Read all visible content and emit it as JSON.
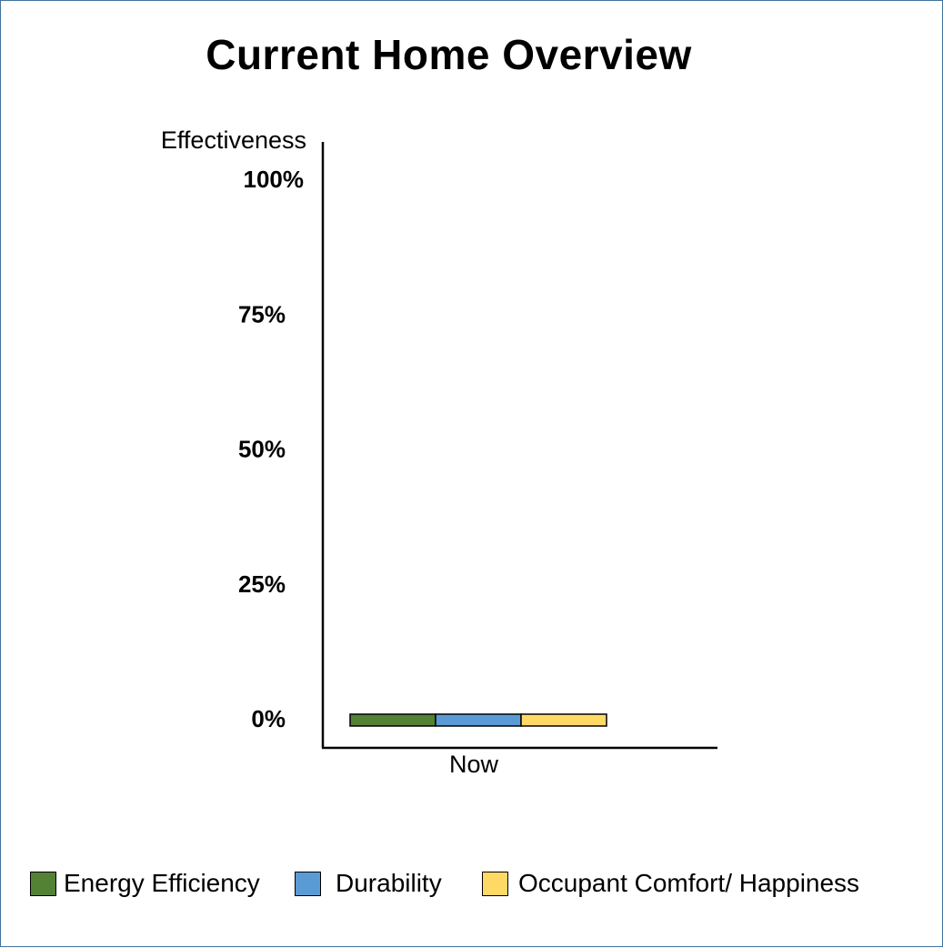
{
  "chart_data": {
    "type": "bar",
    "title": "Current Home Overview",
    "ylabel": "Effectiveness",
    "xlabel": "",
    "categories": [
      "Now"
    ],
    "ylim": [
      0,
      100
    ],
    "yticks": [
      {
        "value": 100,
        "label": "100%"
      },
      {
        "value": 75,
        "label": "75%"
      },
      {
        "value": 50,
        "label": "50%"
      },
      {
        "value": 25,
        "label": "25%"
      },
      {
        "value": 0,
        "label": "0%"
      }
    ],
    "series": [
      {
        "name": "Energy Efficiency",
        "values": [
          0
        ],
        "color": "#538135"
      },
      {
        "name": "Durability",
        "values": [
          0
        ],
        "color": "#5b9bd5"
      },
      {
        "name": "Occupant Comfort/ Happiness",
        "values": [
          0
        ],
        "color": "#ffd966"
      }
    ],
    "grid": false,
    "legend_position": "bottom"
  }
}
